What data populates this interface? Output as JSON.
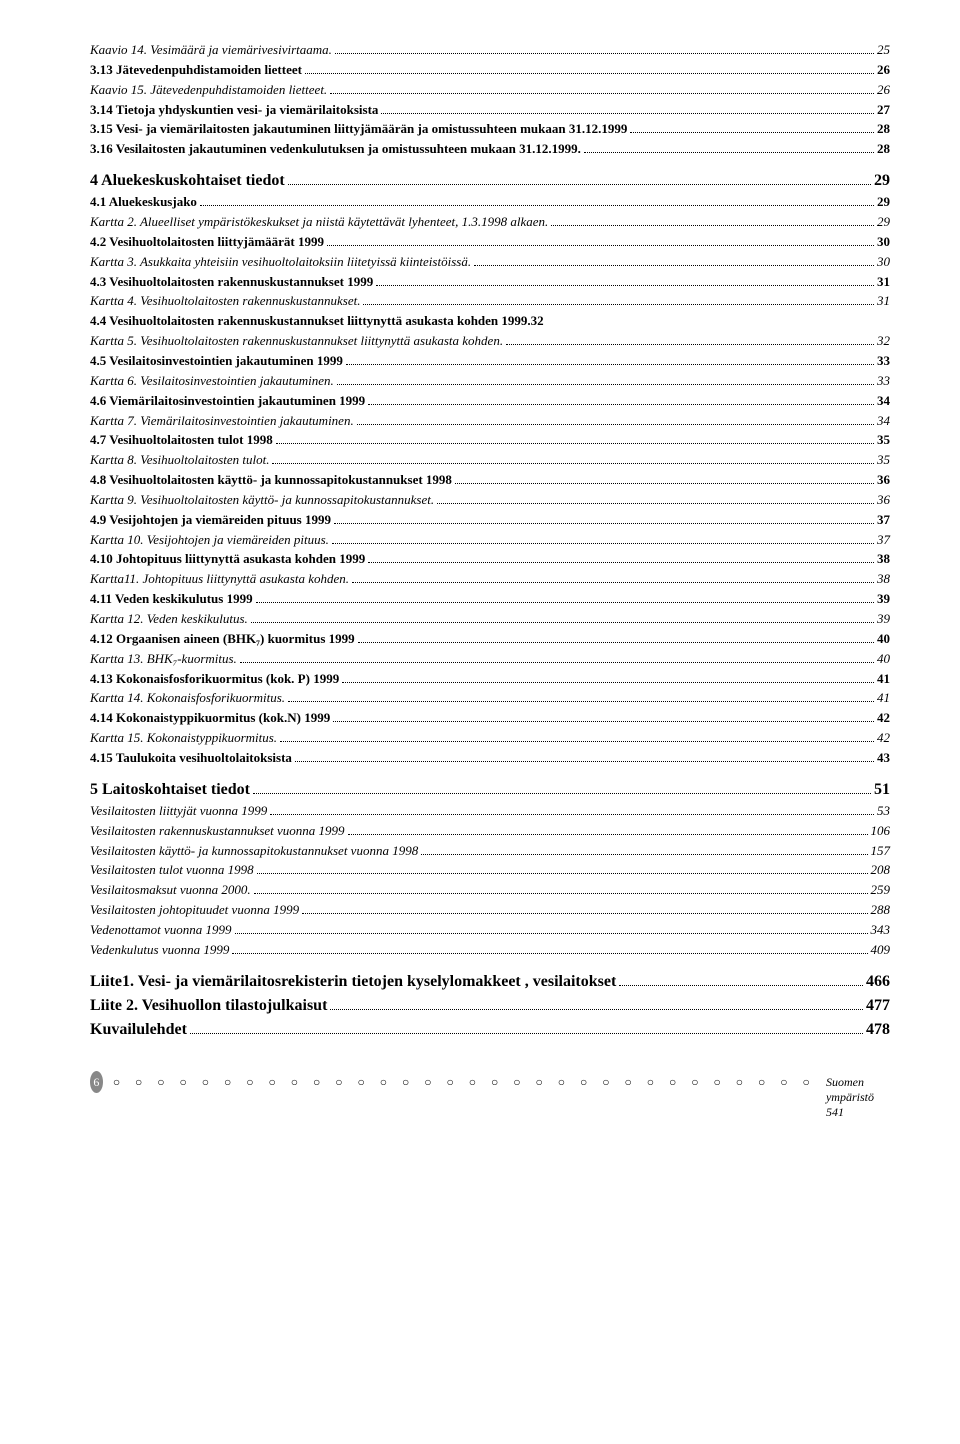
{
  "toc": [
    {
      "label": "Kaavio 14. Vesimäärä ja viemärivesivirtaama.",
      "page": "25",
      "style": "italic"
    },
    {
      "label": "3.13 Jätevedenpuhdistamoiden lietteet",
      "page": "26",
      "style": "semibold"
    },
    {
      "label": "Kaavio 15. Jätevedenpuhdistamoiden lietteet.",
      "page": "26",
      "style": "italic"
    },
    {
      "label": "3.14 Tietoja yhdyskuntien vesi- ja viemärilaitoksista",
      "page": "27",
      "style": "semibold"
    },
    {
      "label": "3.15 Vesi- ja viemärilaitosten jakautuminen liittyjämäärän ja omistussuhteen mukaan 31.12.1999",
      "page": "28",
      "style": "semibold"
    },
    {
      "label": "3.16 Vesilaitosten jakautuminen vedenkulutuksen ja omistussuhteen mukaan 31.12.1999.",
      "page": "28",
      "style": "semibold"
    },
    {
      "label": "4 Aluekeskuskohtaiset tiedot",
      "page": "29",
      "style": "bold larger2",
      "gap": true
    },
    {
      "label": "4.1 Aluekeskusjako",
      "page": "29",
      "style": "semibold"
    },
    {
      "label": "Kartta 2. Alueelliset ympäristökeskukset ja niistä käytettävät lyhenteet, 1.3.1998 alkaen.",
      "page": "29",
      "style": "italic"
    },
    {
      "label": "4.2 Vesihuoltolaitosten liittyjämäärät 1999",
      "page": "30",
      "style": "semibold"
    },
    {
      "label": "Kartta 3. Asukkaita yhteisiin vesihuoltolaitoksiin liitetyissä kiinteistöissä.",
      "page": "30",
      "style": "italic"
    },
    {
      "label": "4.3 Vesihuoltolaitosten rakennuskustannukset 1999",
      "page": "31",
      "style": "semibold"
    },
    {
      "label": "Kartta 4. Vesihuoltolaitosten rakennuskustannukset.",
      "page": "31",
      "style": "italic"
    },
    {
      "label": "4.4 Vesihuoltolaitosten rakennuskustannukset liittynyttä asukasta kohden 1999",
      "page": "32",
      "style": "semibold",
      "nodots": true
    },
    {
      "label": "Kartta 5. Vesihuoltolaitosten rakennuskustannukset liittynyttä asukasta kohden.",
      "page": "32",
      "style": "italic"
    },
    {
      "label": "4.5 Vesilaitosinvestointien jakautuminen 1999",
      "page": "33",
      "style": "semibold"
    },
    {
      "label": "Kartta 6. Vesilaitosinvestointien jakautuminen.",
      "page": "33",
      "style": "italic"
    },
    {
      "label": "4.6 Viemärilaitosinvestointien jakautuminen 1999",
      "page": "34",
      "style": "semibold"
    },
    {
      "label": "Kartta 7. Viemärilaitosinvestointien jakautuminen.",
      "page": "34",
      "style": "italic"
    },
    {
      "label": "4.7 Vesihuoltolaitosten tulot 1998",
      "page": "35",
      "style": "semibold"
    },
    {
      "label": "Kartta 8. Vesihuoltolaitosten tulot.",
      "page": "35",
      "style": "italic"
    },
    {
      "label": "4.8 Vesihuoltolaitosten käyttö- ja kunnossapitokustannukset 1998",
      "page": "36",
      "style": "semibold"
    },
    {
      "label": "Kartta 9. Vesihuoltolaitosten käyttö- ja kunnossapitokustannukset.",
      "page": "36",
      "style": "italic"
    },
    {
      "label": "4.9 Vesijohtojen ja viemäreiden pituus 1999",
      "page": "37",
      "style": "semibold"
    },
    {
      "label": "Kartta 10. Vesijohtojen ja viemäreiden pituus.",
      "page": "37",
      "style": "italic"
    },
    {
      "label": "4.10 Johtopituus liittynyttä asukasta kohden 1999",
      "page": "38",
      "style": "semibold"
    },
    {
      "label": "Kartta11. Johtopituus  liittynyttä asukasta kohden.",
      "page": "38",
      "style": "italic"
    },
    {
      "label": "4.11 Veden keskikulutus 1999",
      "page": "39",
      "style": "semibold"
    },
    {
      "label": "Kartta 12. Veden keskikulutus.",
      "page": "39",
      "style": "italic"
    },
    {
      "label": "4.12 Orgaanisen aineen (BHK₇) kuormitus 1999",
      "page": "40",
      "style": "semibold"
    },
    {
      "label": "Kartta 13. BHK₇-kuormitus.",
      "page": "40",
      "style": "italic"
    },
    {
      "label": "4.13 Kokonaisfosforikuormitus (kok. P) 1999",
      "page": "41",
      "style": "semibold"
    },
    {
      "label": "Kartta 14. Kokonaisfosforikuormitus.",
      "page": "41",
      "style": "italic"
    },
    {
      "label": "4.14 Kokonaistyppikuormitus (kok.N) 1999",
      "page": "42",
      "style": "semibold"
    },
    {
      "label": "Kartta 15. Kokonaistyppikuormitus.",
      "page": "42",
      "style": "italic"
    },
    {
      "label": "4.15 Taulukoita vesihuoltolaitoksista",
      "page": "43",
      "style": "semibold"
    },
    {
      "label": "5 Laitoskohtaiset tiedot",
      "page": "51",
      "style": "bold larger2",
      "gap": true
    },
    {
      "label": "Vesilaitosten liittyjät vuonna 1999",
      "page": "53",
      "style": "italic"
    },
    {
      "label": "Vesilaitosten rakennuskustannukset vuonna 1999",
      "page": "106",
      "style": "italic"
    },
    {
      "label": "Vesilaitosten käyttö- ja kunnossapitokustannukset  vuonna  1998",
      "page": "157",
      "style": "italic"
    },
    {
      "label": "Vesilaitosten tulot vuonna 1998",
      "page": "208",
      "style": "italic"
    },
    {
      "label": "Vesilaitosmaksut vuonna  2000.",
      "page": "259",
      "style": "italic"
    },
    {
      "label": "Vesilaitosten johtopituudet vuonna 1999",
      "page": "288",
      "style": "italic"
    },
    {
      "label": "Vedenottamot vuonna 1999",
      "page": "343",
      "style": "italic"
    },
    {
      "label": "Vedenkulutus vuonna 1999",
      "page": "409",
      "style": "italic"
    },
    {
      "label": "Liite1. Vesi- ja viemärilaitosrekisterin tietojen kyselylomakkeet , vesilaitokset",
      "page": "466",
      "style": "bold larger2",
      "gap": true
    },
    {
      "label": "Liite 2. Vesihuollon tilastojulkaisut",
      "page": "477",
      "style": "bold larger2"
    },
    {
      "label": "Kuvailulehdet",
      "page": "478",
      "style": "bold larger2"
    }
  ],
  "footer": {
    "page_number": "6",
    "text": "Suomen ympäristö 541"
  }
}
